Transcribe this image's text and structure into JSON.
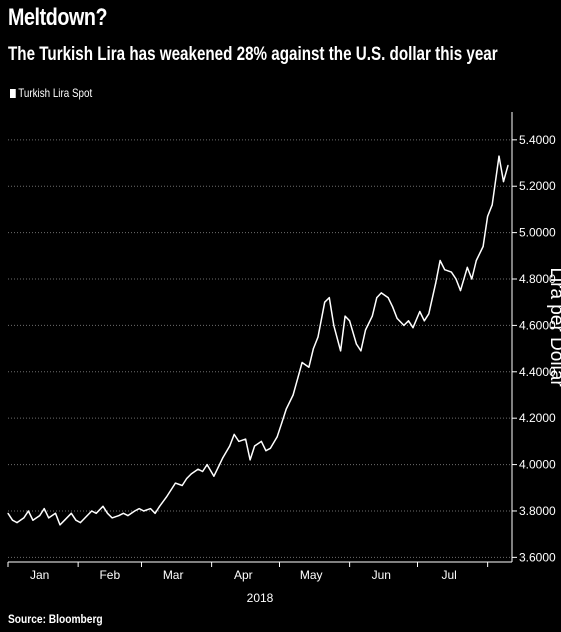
{
  "header": {
    "title": "Meltdown?",
    "subtitle": "The Turkish Lira has weakened 28% against the U.S. dollar this year"
  },
  "legend": {
    "label": "Turkish Lira Spot"
  },
  "footer": {
    "source": "Source: Bloomberg"
  },
  "colors": {
    "background": "#000000",
    "line": "#ffffff",
    "grid": "#6e6e6e"
  },
  "chart_data": {
    "type": "line",
    "title": "Meltdown?",
    "subtitle": "The Turkish Lira has weakened 28% against the U.S. dollar this year",
    "ylabel": "Lira per Dollar",
    "xlabel": "2018",
    "y_axis_position": "right",
    "ylim": [
      3.58,
      5.52
    ],
    "yticks": [
      "5.4000",
      "5.2000",
      "5.0000",
      "4.8000",
      "4.6000",
      "4.4000",
      "4.2000",
      "4.0000",
      "3.8000",
      "3.6000"
    ],
    "x_range": [
      "2018-01-01",
      "2018-08-10"
    ],
    "xticks": [
      {
        "label": "Jan",
        "date": "2018-01-15"
      },
      {
        "label": "Feb",
        "date": "2018-02-15"
      },
      {
        "label": "Mar",
        "date": "2018-03-15"
      },
      {
        "label": "Apr",
        "date": "2018-04-15"
      },
      {
        "label": "May",
        "date": "2018-05-15"
      },
      {
        "label": "Jun",
        "date": "2018-06-15"
      },
      {
        "label": "Jul",
        "date": "2018-07-15"
      }
    ],
    "grid": true,
    "legend_position": "top-left",
    "series": [
      {
        "name": "Turkish Lira Spot",
        "points": [
          [
            "2018-01-01",
            3.79
          ],
          [
            "2018-01-03",
            3.76
          ],
          [
            "2018-01-05",
            3.75
          ],
          [
            "2018-01-08",
            3.77
          ],
          [
            "2018-01-10",
            3.8
          ],
          [
            "2018-01-12",
            3.76
          ],
          [
            "2018-01-15",
            3.78
          ],
          [
            "2018-01-17",
            3.81
          ],
          [
            "2018-01-19",
            3.77
          ],
          [
            "2018-01-22",
            3.79
          ],
          [
            "2018-01-24",
            3.74
          ],
          [
            "2018-01-26",
            3.76
          ],
          [
            "2018-01-29",
            3.79
          ],
          [
            "2018-01-31",
            3.76
          ],
          [
            "2018-02-02",
            3.75
          ],
          [
            "2018-02-05",
            3.78
          ],
          [
            "2018-02-07",
            3.8
          ],
          [
            "2018-02-09",
            3.79
          ],
          [
            "2018-02-12",
            3.82
          ],
          [
            "2018-02-14",
            3.79
          ],
          [
            "2018-02-16",
            3.77
          ],
          [
            "2018-02-19",
            3.78
          ],
          [
            "2018-02-21",
            3.79
          ],
          [
            "2018-02-23",
            3.78
          ],
          [
            "2018-02-26",
            3.8
          ],
          [
            "2018-02-28",
            3.81
          ],
          [
            "2018-03-02",
            3.8
          ],
          [
            "2018-03-05",
            3.81
          ],
          [
            "2018-03-07",
            3.79
          ],
          [
            "2018-03-09",
            3.82
          ],
          [
            "2018-03-12",
            3.86
          ],
          [
            "2018-03-14",
            3.89
          ],
          [
            "2018-03-16",
            3.92
          ],
          [
            "2018-03-19",
            3.91
          ],
          [
            "2018-03-21",
            3.94
          ],
          [
            "2018-03-23",
            3.96
          ],
          [
            "2018-03-26",
            3.98
          ],
          [
            "2018-03-28",
            3.97
          ],
          [
            "2018-03-30",
            4.0
          ],
          [
            "2018-04-02",
            3.95
          ],
          [
            "2018-04-04",
            3.99
          ],
          [
            "2018-04-06",
            4.03
          ],
          [
            "2018-04-09",
            4.08
          ],
          [
            "2018-04-11",
            4.13
          ],
          [
            "2018-04-13",
            4.1
          ],
          [
            "2018-04-16",
            4.11
          ],
          [
            "2018-04-18",
            4.02
          ],
          [
            "2018-04-20",
            4.08
          ],
          [
            "2018-04-23",
            4.1
          ],
          [
            "2018-04-25",
            4.06
          ],
          [
            "2018-04-27",
            4.07
          ],
          [
            "2018-04-30",
            4.12
          ],
          [
            "2018-05-02",
            4.18
          ],
          [
            "2018-05-04",
            4.24
          ],
          [
            "2018-05-07",
            4.3
          ],
          [
            "2018-05-09",
            4.37
          ],
          [
            "2018-05-11",
            4.44
          ],
          [
            "2018-05-14",
            4.42
          ],
          [
            "2018-05-16",
            4.5
          ],
          [
            "2018-05-18",
            4.55
          ],
          [
            "2018-05-21",
            4.7
          ],
          [
            "2018-05-23",
            4.72
          ],
          [
            "2018-05-25",
            4.6
          ],
          [
            "2018-05-28",
            4.49
          ],
          [
            "2018-05-30",
            4.64
          ],
          [
            "2018-06-01",
            4.62
          ],
          [
            "2018-06-04",
            4.52
          ],
          [
            "2018-06-06",
            4.49
          ],
          [
            "2018-06-08",
            4.58
          ],
          [
            "2018-06-11",
            4.64
          ],
          [
            "2018-06-13",
            4.72
          ],
          [
            "2018-06-15",
            4.74
          ],
          [
            "2018-06-18",
            4.72
          ],
          [
            "2018-06-20",
            4.68
          ],
          [
            "2018-06-22",
            4.63
          ],
          [
            "2018-06-25",
            4.6
          ],
          [
            "2018-06-27",
            4.62
          ],
          [
            "2018-06-29",
            4.59
          ],
          [
            "2018-07-02",
            4.66
          ],
          [
            "2018-07-04",
            4.62
          ],
          [
            "2018-07-06",
            4.65
          ],
          [
            "2018-07-09",
            4.78
          ],
          [
            "2018-07-11",
            4.88
          ],
          [
            "2018-07-13",
            4.84
          ],
          [
            "2018-07-16",
            4.83
          ],
          [
            "2018-07-18",
            4.8
          ],
          [
            "2018-07-20",
            4.75
          ],
          [
            "2018-07-23",
            4.85
          ],
          [
            "2018-07-25",
            4.8
          ],
          [
            "2018-07-27",
            4.88
          ],
          [
            "2018-07-30",
            4.94
          ],
          [
            "2018-08-01",
            5.07
          ],
          [
            "2018-08-03",
            5.12
          ],
          [
            "2018-08-06",
            5.33
          ],
          [
            "2018-08-08",
            5.22
          ],
          [
            "2018-08-10",
            5.29
          ]
        ]
      }
    ]
  }
}
